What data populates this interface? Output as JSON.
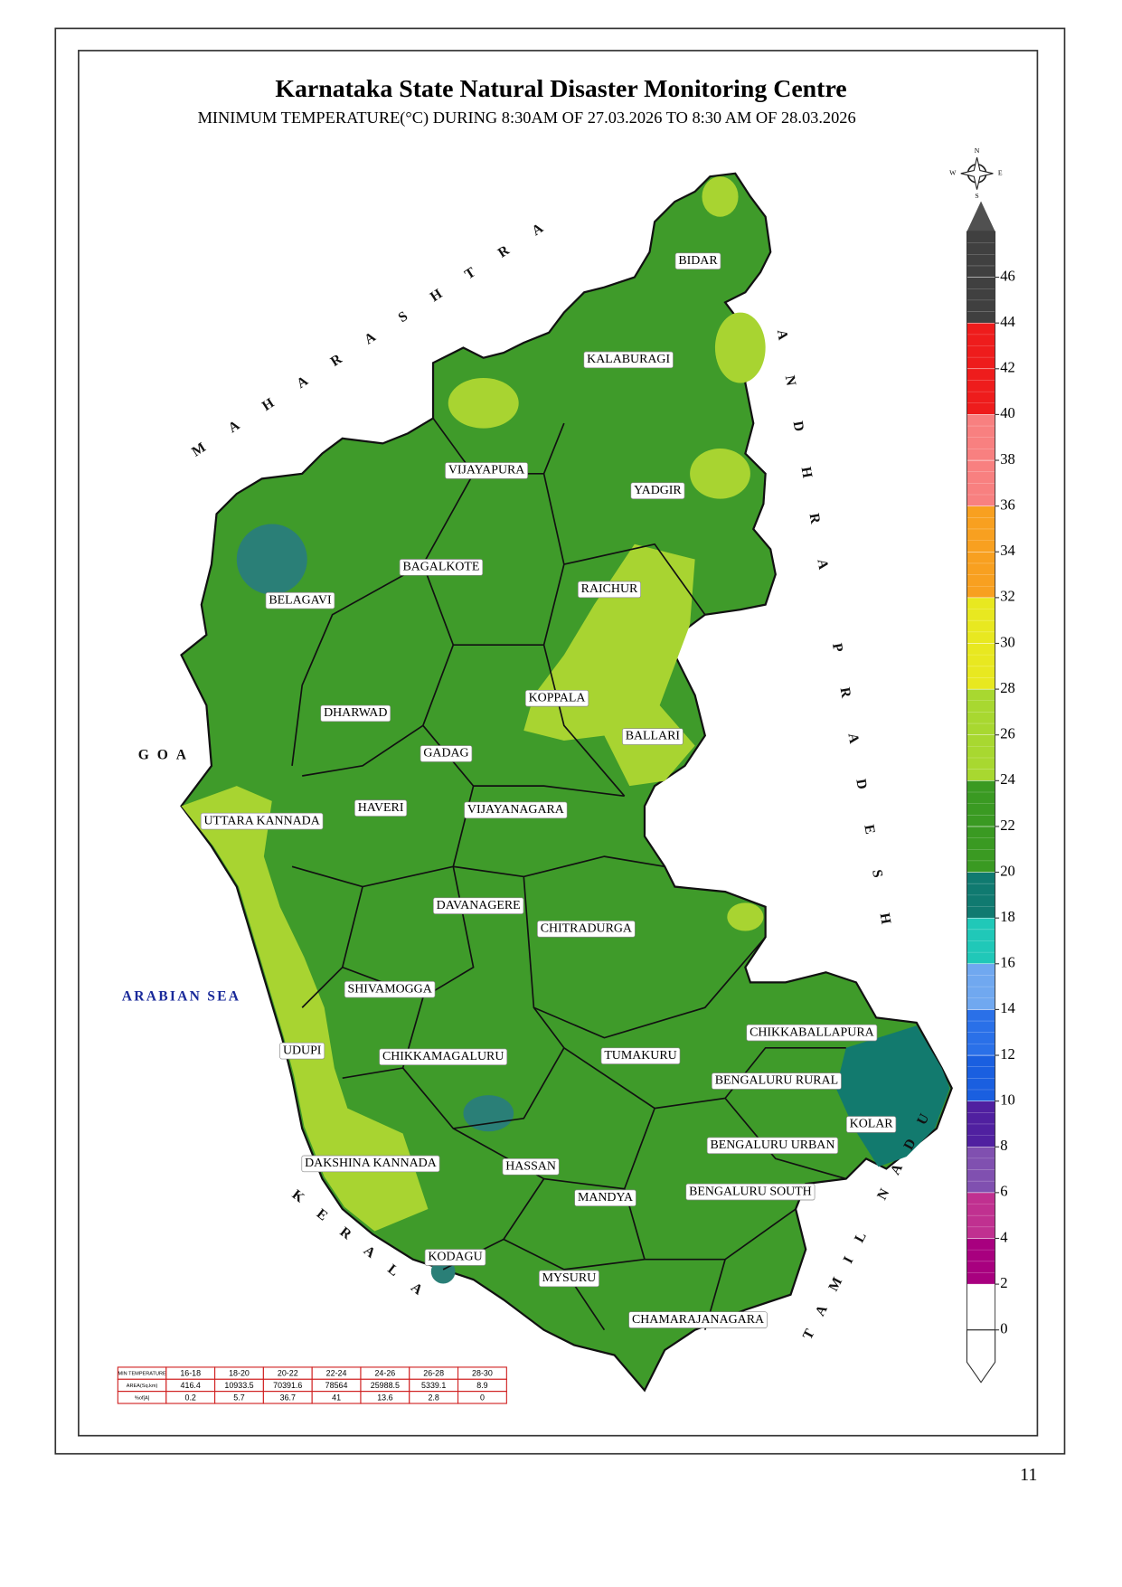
{
  "header": {
    "title": "Karnataka State Natural Disaster Monitoring Centre",
    "subtitle": "MINIMUM TEMPERATURE(°C) DURING 8:30AM OF 27.03.2026 TO 8:30 AM OF 28.03.2026"
  },
  "compass": {
    "n": "N",
    "e": "E",
    "s": "S",
    "w": "W"
  },
  "neighbors": [
    "MAHARASHTRA",
    "GOA",
    "ARABIAN SEA",
    "ANDHRA PRADESH",
    "TAMIL NADU",
    "KERALA"
  ],
  "districts": [
    "BIDAR",
    "KALABURAGI",
    "VIJAYAPURA",
    "YADGIR",
    "BAGALKOTE",
    "RAICHUR",
    "BELAGAVI",
    "KOPPALA",
    "DHARWAD",
    "BALLARI",
    "GADAG",
    "HAVERI",
    "VIJAYANAGARA",
    "UTTARA KANNADA",
    "DAVANAGERE",
    "CHITRADURGA",
    "SHIVAMOGGA",
    "CHIKKABALLAPURA",
    "UDUPI",
    "CHIKKAMAGALURU",
    "TUMAKURU",
    "BENGALURU RURAL",
    "KOLAR",
    "BENGALURU URBAN",
    "DAKSHINA KANNADA",
    "HASSAN",
    "BENGALURU SOUTH",
    "MANDYA",
    "KODAGU",
    "MYSURU",
    "CHAMARAJANAGARA"
  ],
  "legend": {
    "ticks": [
      0,
      2,
      4,
      6,
      8,
      10,
      12,
      14,
      16,
      18,
      20,
      22,
      24,
      26,
      28,
      30,
      32,
      34,
      36,
      38,
      40,
      42,
      44,
      46
    ],
    "colors": [
      "#ffffff",
      "#a8007f",
      "#c03090",
      "#8050b0",
      "#5020a0",
      "#1a5fe0",
      "#2a70e8",
      "#70a8f0",
      "#20c8b8",
      "#107a70",
      "#3a9a22",
      "#3a9a22",
      "#a8d830",
      "#a8d830",
      "#e8e820",
      "#e8e820",
      "#f8a020",
      "#f8a020",
      "#f88080",
      "#f88080",
      "#ee1c1c",
      "#ee1c1c",
      "#404040",
      "#404040"
    ]
  },
  "table": {
    "header": [
      "MIN TEMPERATURE",
      "16-18",
      "18-20",
      "20-22",
      "22-24",
      "24-26",
      "26-28",
      "28-30"
    ],
    "rows": [
      [
        "AREA(Sq.km)",
        "416.4",
        "10933.5",
        "70391.6",
        "78564",
        "25988.5",
        "5339.1",
        "8.9"
      ],
      [
        "%of[A]",
        "0.2",
        "5.7",
        "36.7",
        "41",
        "13.6",
        "2.8",
        "0"
      ]
    ]
  },
  "page_number": "11"
}
